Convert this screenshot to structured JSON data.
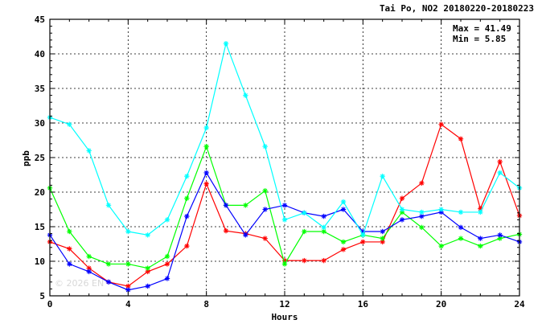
{
  "chart_data": {
    "type": "line",
    "title": "Tai Po, NO2 20180220-20180223",
    "xlabel": "Hours",
    "ylabel": "ppb",
    "xlim": [
      0,
      24
    ],
    "ylim": [
      5,
      45
    ],
    "x_ticks": [
      "0",
      "4",
      "8",
      "12",
      "16",
      "20",
      "24"
    ],
    "y_ticks": [
      "5",
      "10",
      "15",
      "20",
      "25",
      "30",
      "35",
      "40",
      "45"
    ],
    "grid": true,
    "stats": {
      "max_label": "Max = 41.49",
      "min_label": "Min =  5.85"
    },
    "watermark": "© 2026 EN",
    "x": [
      0,
      1,
      2,
      3,
      4,
      5,
      6,
      7,
      8,
      9,
      10,
      11,
      12,
      13,
      14,
      15,
      16,
      17,
      18,
      19,
      20,
      21,
      22,
      23,
      24
    ],
    "series": [
      {
        "color": "#ff0000",
        "values": [
          12.8,
          11.8,
          9.0,
          7.0,
          6.4,
          8.5,
          9.6,
          12.2,
          21.2,
          14.4,
          14.0,
          13.3,
          10.1,
          10.1,
          10.1,
          11.7,
          12.8,
          12.8,
          19.1,
          21.3,
          29.8,
          27.7,
          17.6,
          24.4,
          16.6
        ]
      },
      {
        "color": "#00ff00",
        "values": [
          20.6,
          14.3,
          10.7,
          9.6,
          9.6,
          9.0,
          10.7,
          19.1,
          26.6,
          18.1,
          18.1,
          20.2,
          9.6,
          14.3,
          14.3,
          12.8,
          13.8,
          13.3,
          17.1,
          14.9,
          12.2,
          13.3,
          12.2,
          13.3,
          13.9
        ]
      },
      {
        "color": "#0000ff",
        "values": [
          13.8,
          9.6,
          8.5,
          7.0,
          5.85,
          6.4,
          7.5,
          16.5,
          22.8,
          18.1,
          13.8,
          17.5,
          18.1,
          17.0,
          16.5,
          17.5,
          14.3,
          14.3,
          16.0,
          16.5,
          17.1,
          14.9,
          13.3,
          13.8,
          12.8
        ]
      },
      {
        "color": "#00ffff",
        "values": [
          30.8,
          29.8,
          26.0,
          18.1,
          14.3,
          13.8,
          16.0,
          22.3,
          29.3,
          41.49,
          34.0,
          26.6,
          16.0,
          17.0,
          14.9,
          18.6,
          13.8,
          22.3,
          17.5,
          17.1,
          17.5,
          17.1,
          17.1,
          22.8,
          20.6
        ]
      }
    ]
  }
}
